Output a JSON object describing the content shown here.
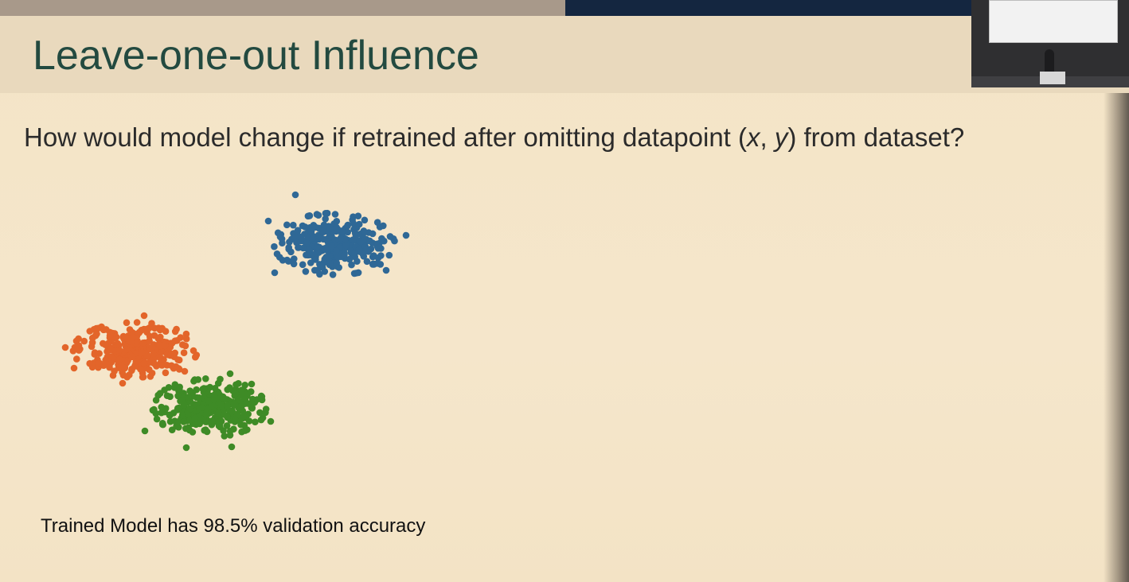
{
  "slide": {
    "title": "Leave-one-out Influence",
    "question_before": "How would model change if retrained after omitting datapoint (",
    "question_x": "x",
    "question_sep": ", ",
    "question_y": "y",
    "question_after": ") from dataset?",
    "caption": "Trained Model has 98.5% validation accuracy"
  },
  "colors": {
    "blue": "#2f6896",
    "orange": "#e3652a",
    "green": "#3e8b26"
  },
  "chart_data": {
    "type": "scatter",
    "title": "",
    "xlabel": "",
    "ylabel": "",
    "grid": false,
    "axes_visible": false,
    "series": [
      {
        "color": "blue",
        "center": [
          420,
          307
        ],
        "spread": [
          33,
          17
        ],
        "count": 300,
        "outliers": [
          [
            371,
            245
          ],
          [
            510,
            296
          ],
          [
            337,
            278
          ],
          [
            345,
            343
          ],
          [
            485,
            340
          ],
          [
            466,
            313
          ]
        ]
      },
      {
        "color": "orange",
        "center": [
          170,
          440
        ],
        "spread": [
          34,
          15
        ],
        "count": 320,
        "outliers": [
          [
            82,
            437
          ],
          [
            93,
            463
          ],
          [
            181,
            397
          ],
          [
            243,
            441
          ],
          [
            232,
            467
          ],
          [
            154,
            482
          ]
        ]
      },
      {
        "color": "green",
        "center": [
          263,
          513
        ],
        "spread": [
          31,
          16
        ],
        "count": 330,
        "outliers": [
          [
            182,
            542
          ],
          [
            234,
            563
          ],
          [
            340,
            530
          ],
          [
            316,
            483
          ],
          [
            289,
            470
          ],
          [
            291,
            562
          ]
        ]
      }
    ]
  }
}
